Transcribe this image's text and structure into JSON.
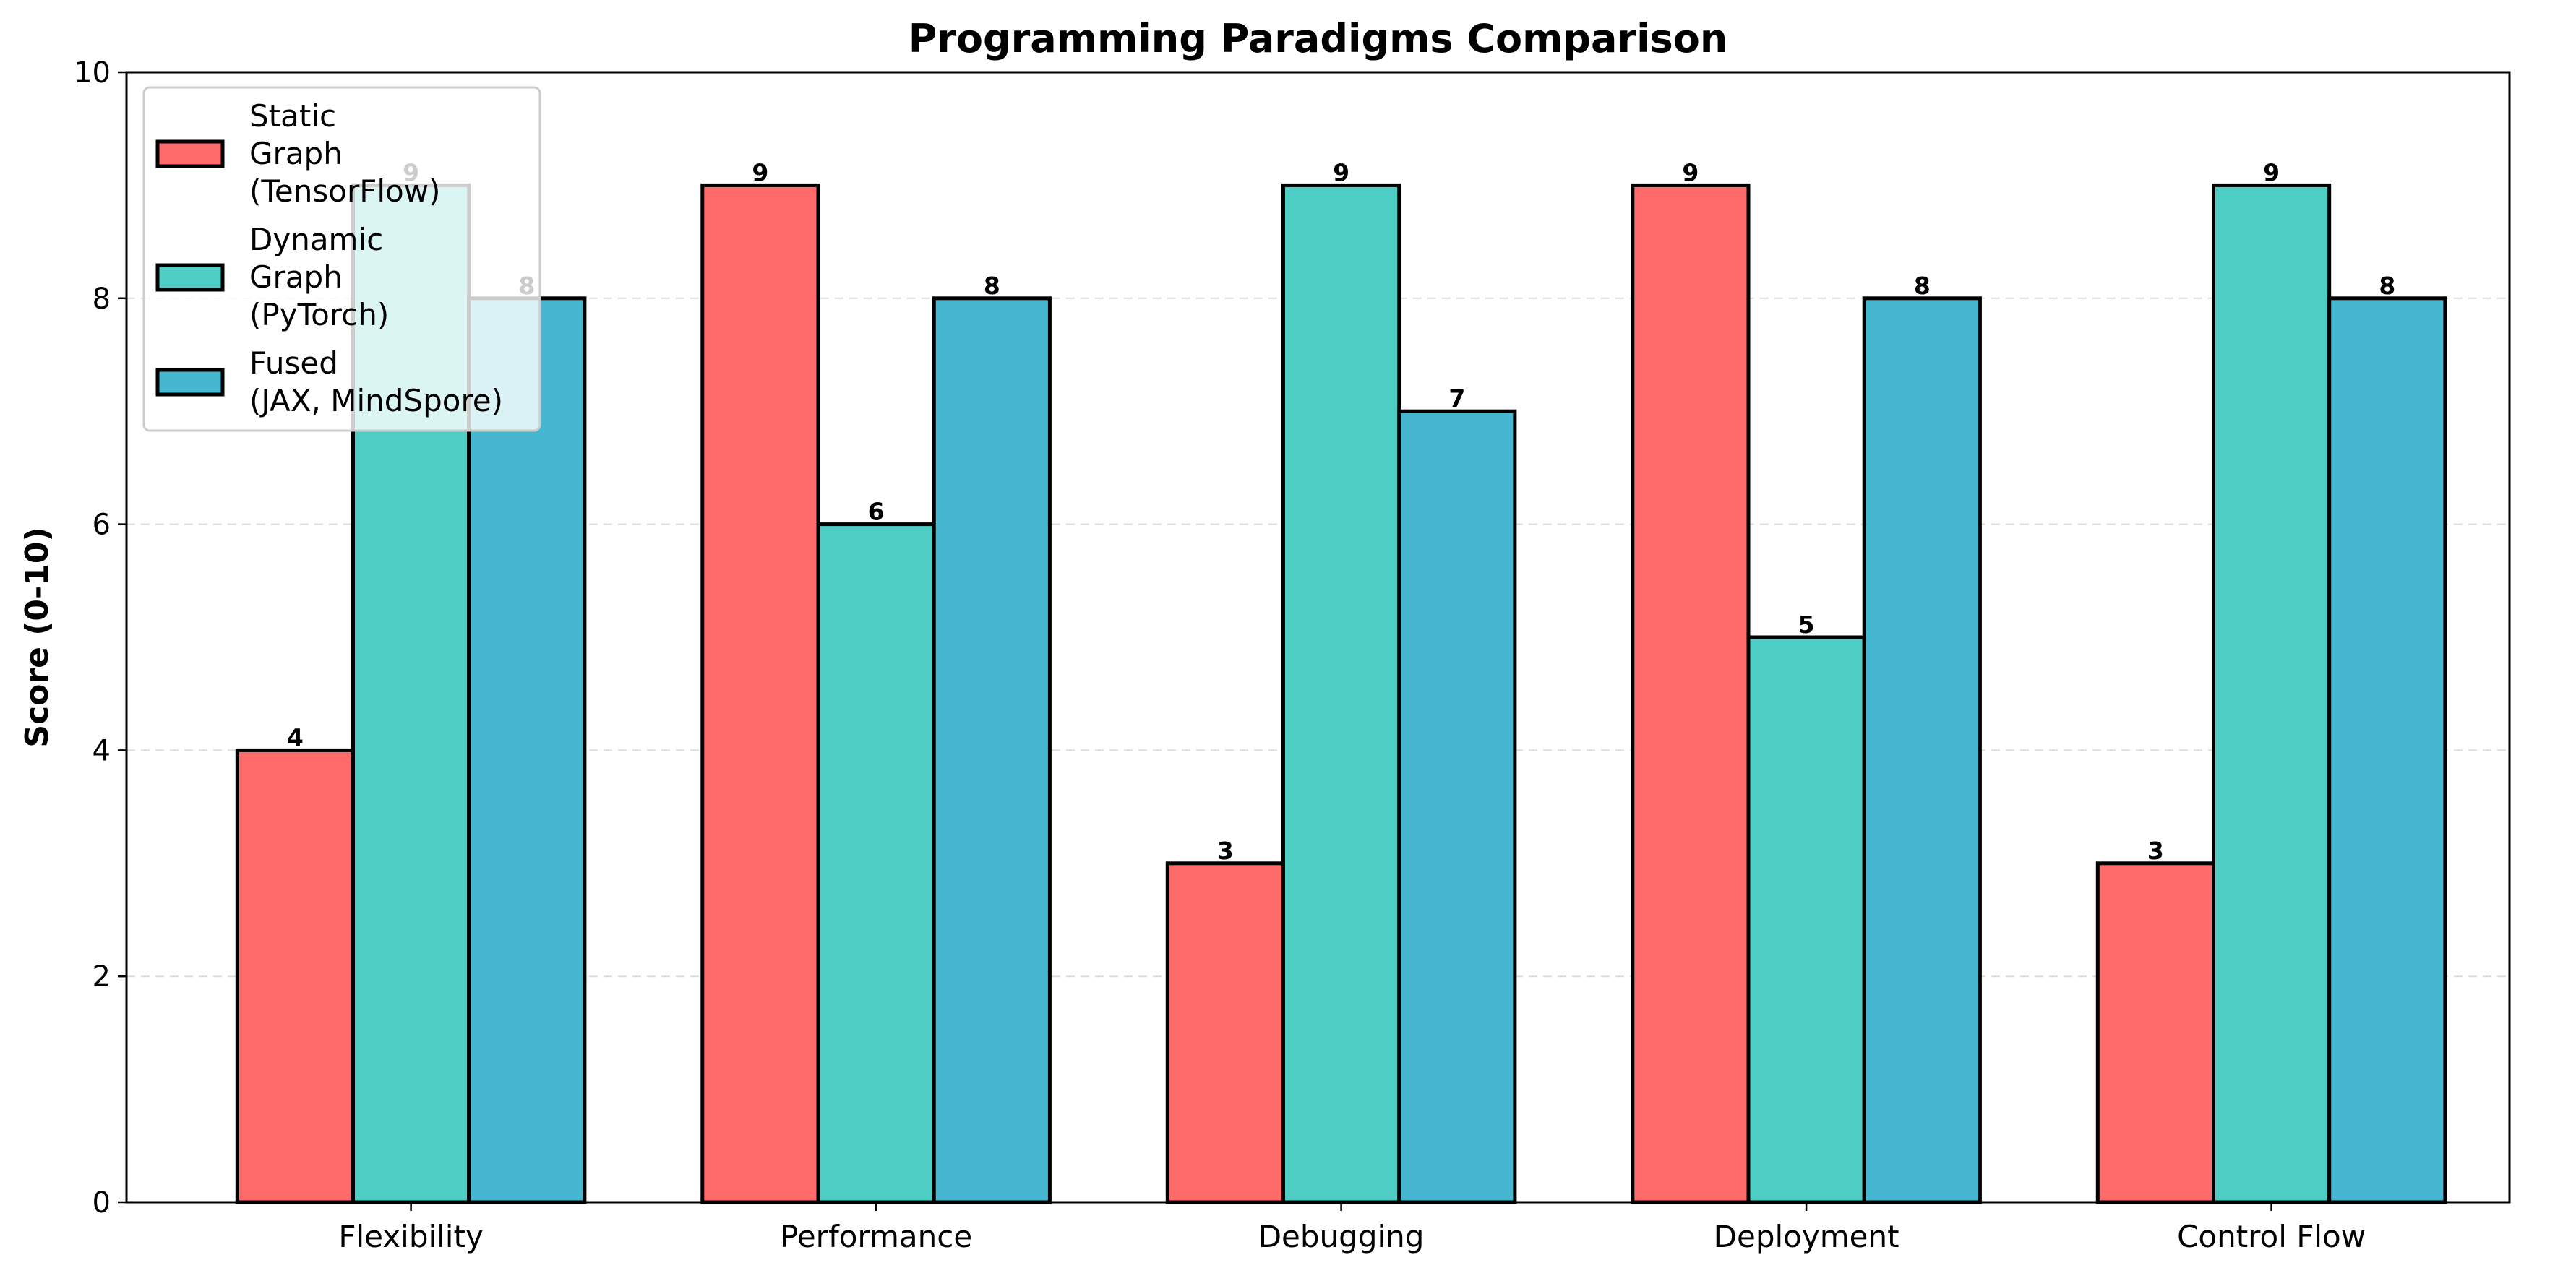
{
  "chart_data": {
    "type": "bar",
    "title": "Programming Paradigms Comparison",
    "xlabel": "",
    "ylabel": "Score (0-10)",
    "ylim": [
      0,
      10
    ],
    "yticks": [
      "0",
      "2",
      "4",
      "6",
      "8",
      "10"
    ],
    "grid": "y-dashed",
    "legend_position": "top-left",
    "categories": [
      "Flexibility",
      "Performance",
      "Debugging",
      "Deployment",
      "Control Flow"
    ],
    "series": [
      {
        "name": "Static\nGraph\n(TensorFlow)",
        "color": "#FF6B6B",
        "values": [
          4,
          9,
          3,
          9,
          3
        ]
      },
      {
        "name": "Dynamic\nGraph\n(PyTorch)",
        "color": "#4ECDC4",
        "values": [
          9,
          6,
          9,
          5,
          9
        ]
      },
      {
        "name": "Fused\n(JAX, MindSpore)",
        "color": "#45B7D1",
        "values": [
          8,
          8,
          7,
          8,
          8
        ]
      }
    ],
    "data_labels": true
  }
}
